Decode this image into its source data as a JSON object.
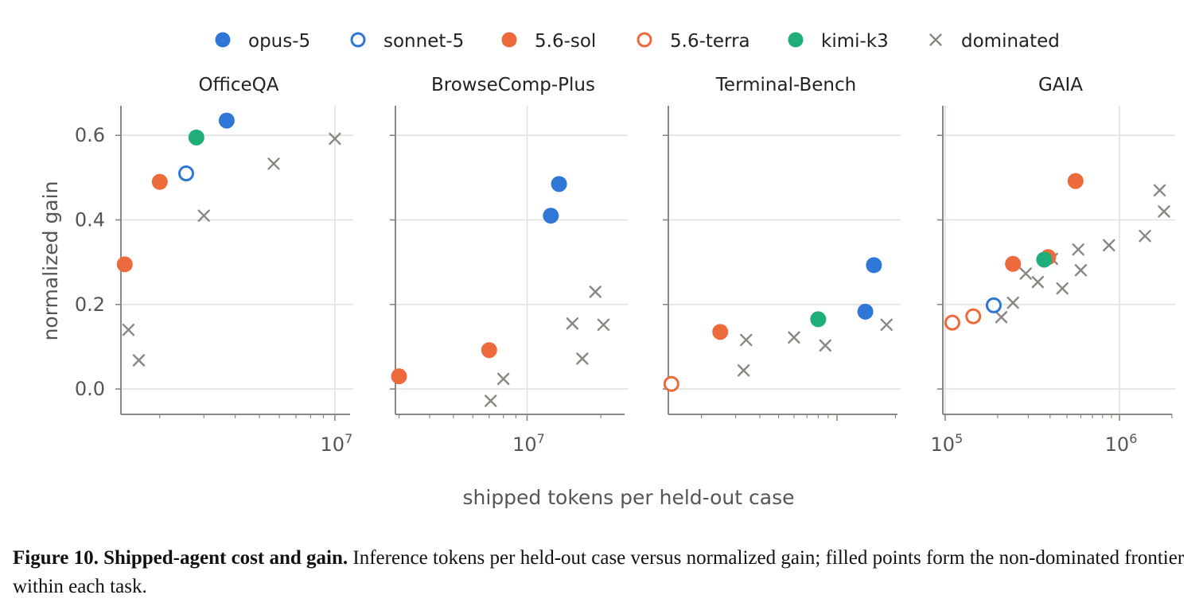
{
  "colors": {
    "opus-5": "#2f77d6",
    "sonnet-5": "#2f77d6",
    "5.6-sol": "#ec6a3c",
    "5.6-terra": "#ec6a3c",
    "kimi-k3": "#1fae79",
    "dominated": "#8a8781",
    "axis": "#8a8781",
    "grid": "#e3e1dc"
  },
  "legend": [
    {
      "name": "opus-5",
      "marker": "filled-circle"
    },
    {
      "name": "sonnet-5",
      "marker": "open-circle"
    },
    {
      "name": "5.6-sol",
      "marker": "filled-circle"
    },
    {
      "name": "5.6-terra",
      "marker": "open-circle"
    },
    {
      "name": "kimi-k3",
      "marker": "filled-circle"
    },
    {
      "name": "dominated",
      "marker": "x"
    }
  ],
  "chart_data": [
    {
      "type": "scatter",
      "title": "OfficeQA",
      "xscale": "log",
      "ylabel": "normalized gain",
      "xlim": [
        1400000,
        11500000
      ],
      "ylim": [
        -0.06,
        0.67
      ],
      "yticks": [
        "0.0",
        "0.2",
        "0.4",
        "0.6"
      ],
      "xticks": [
        {
          "value": 10000000,
          "label": "10^7"
        }
      ],
      "grid": true,
      "points": [
        {
          "series": "5.6-sol",
          "x": 1450000,
          "y": 0.295
        },
        {
          "series": "5.6-sol",
          "x": 2000000,
          "y": 0.49
        },
        {
          "series": "sonnet-5",
          "x": 2550000,
          "y": 0.51
        },
        {
          "series": "kimi-k3",
          "x": 2800000,
          "y": 0.595
        },
        {
          "series": "opus-5",
          "x": 3700000,
          "y": 0.635
        },
        {
          "series": "dominated",
          "x": 1500000,
          "y": 0.14
        },
        {
          "series": "dominated",
          "x": 1650000,
          "y": 0.068
        },
        {
          "series": "dominated",
          "x": 3000000,
          "y": 0.41
        },
        {
          "series": "dominated",
          "x": 5700000,
          "y": 0.533
        },
        {
          "series": "dominated",
          "x": 10000000,
          "y": 0.592
        }
      ]
    },
    {
      "type": "scatter",
      "title": "BrowseComp-Plus",
      "xscale": "log",
      "xlim": [
        2900000,
        25000000
      ],
      "ylim": [
        -0.06,
        0.67
      ],
      "xticks": [
        {
          "value": 10000000,
          "label": "10^7"
        }
      ],
      "grid": true,
      "points": [
        {
          "series": "5.6-sol",
          "x": 3000000,
          "y": 0.03
        },
        {
          "series": "5.6-sol",
          "x": 7000000,
          "y": 0.092
        },
        {
          "series": "opus-5",
          "x": 12500000,
          "y": 0.41
        },
        {
          "series": "opus-5",
          "x": 13500000,
          "y": 0.485
        },
        {
          "series": "dominated",
          "x": 7100000,
          "y": -0.028
        },
        {
          "series": "dominated",
          "x": 8000000,
          "y": 0.024
        },
        {
          "series": "dominated",
          "x": 15300000,
          "y": 0.155
        },
        {
          "series": "dominated",
          "x": 16800000,
          "y": 0.072
        },
        {
          "series": "dominated",
          "x": 19000000,
          "y": 0.23
        },
        {
          "series": "dominated",
          "x": 20500000,
          "y": 0.152
        }
      ]
    },
    {
      "type": "scatter",
      "title": "Terminal-Bench",
      "xscale": "log",
      "xlim": [
        1350000,
        20500000
      ],
      "ylim": [
        -0.06,
        0.67
      ],
      "grid": true,
      "points": [
        {
          "series": "5.6-terra",
          "x": 1400000,
          "y": 0.012
        },
        {
          "series": "5.6-sol",
          "x": 2500000,
          "y": 0.135
        },
        {
          "series": "kimi-k3",
          "x": 8000000,
          "y": 0.165
        },
        {
          "series": "opus-5",
          "x": 14000000,
          "y": 0.183
        },
        {
          "series": "opus-5",
          "x": 15500000,
          "y": 0.293
        },
        {
          "series": "dominated",
          "x": 3300000,
          "y": 0.044
        },
        {
          "series": "dominated",
          "x": 3400000,
          "y": 0.116
        },
        {
          "series": "dominated",
          "x": 6000000,
          "y": 0.122
        },
        {
          "series": "dominated",
          "x": 8700000,
          "y": 0.103
        },
        {
          "series": "dominated",
          "x": 18000000,
          "y": 0.152
        }
      ]
    },
    {
      "type": "scatter",
      "title": "GAIA",
      "xscale": "log",
      "xlim": [
        97000,
        2000000
      ],
      "ylim": [
        -0.06,
        0.67
      ],
      "xticks": [
        {
          "value": 100000,
          "label": "10^5"
        },
        {
          "value": 1000000,
          "label": "10^6"
        }
      ],
      "grid": true,
      "points": [
        {
          "series": "5.6-terra",
          "x": 110000,
          "y": 0.157
        },
        {
          "series": "5.6-terra",
          "x": 145000,
          "y": 0.172
        },
        {
          "series": "sonnet-5",
          "x": 190000,
          "y": 0.198
        },
        {
          "series": "5.6-sol",
          "x": 245000,
          "y": 0.296
        },
        {
          "series": "5.6-sol",
          "x": 390000,
          "y": 0.312
        },
        {
          "series": "5.6-sol",
          "x": 560000,
          "y": 0.492
        },
        {
          "series": "kimi-k3",
          "x": 370000,
          "y": 0.306
        },
        {
          "series": "dominated",
          "x": 210000,
          "y": 0.17
        },
        {
          "series": "dominated",
          "x": 245000,
          "y": 0.204
        },
        {
          "series": "dominated",
          "x": 290000,
          "y": 0.273
        },
        {
          "series": "dominated",
          "x": 340000,
          "y": 0.253
        },
        {
          "series": "dominated",
          "x": 410000,
          "y": 0.308
        },
        {
          "series": "dominated",
          "x": 470000,
          "y": 0.238
        },
        {
          "series": "dominated",
          "x": 580000,
          "y": 0.33
        },
        {
          "series": "dominated",
          "x": 600000,
          "y": 0.281
        },
        {
          "series": "dominated",
          "x": 870000,
          "y": 0.34
        },
        {
          "series": "dominated",
          "x": 1400000,
          "y": 0.362
        },
        {
          "series": "dominated",
          "x": 1700000,
          "y": 0.47
        },
        {
          "series": "dominated",
          "x": 1800000,
          "y": 0.42
        }
      ]
    }
  ],
  "xlabel": "shipped tokens per held-out case",
  "caption": {
    "label": "Figure 10. Shipped-agent cost and gain.",
    "text": " Inference tokens per held-out case versus normalized gain; filled points form the non-dominated frontier within each task."
  }
}
